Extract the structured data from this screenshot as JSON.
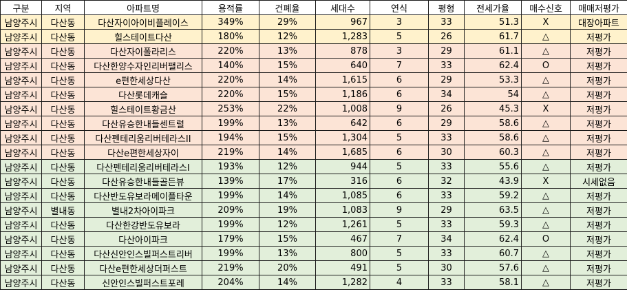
{
  "headers": [
    "구분",
    "지역",
    "아파트명",
    "용적률",
    "건폐율",
    "세대수",
    "연식",
    "평형",
    "전세가율",
    "매수신호",
    "매매저평가"
  ],
  "rows": [
    {
      "group": "yellow",
      "cells": [
        "남양주시",
        "다산동",
        "다산자이아이비플레이스",
        "349%",
        "29%",
        "967",
        "3",
        "33",
        "51.3",
        "X",
        "대장아파트"
      ]
    },
    {
      "group": "yellow",
      "cells": [
        "남양주시",
        "다산동",
        "힐스테이트다산",
        "180%",
        "12%",
        "1,283",
        "5",
        "26",
        "61.7",
        "△",
        "저평가"
      ]
    },
    {
      "group": "peach",
      "cells": [
        "남양주시",
        "다산동",
        "다산자이폴라리스",
        "220%",
        "13%",
        "878",
        "3",
        "29",
        "61.1",
        "△",
        "저평가"
      ]
    },
    {
      "group": "peach",
      "cells": [
        "남양주시",
        "다산동",
        "다산한양수자인리버팰리스",
        "140%",
        "15%",
        "640",
        "7",
        "33",
        "62.4",
        "O",
        "저평가"
      ]
    },
    {
      "group": "peach",
      "cells": [
        "남양주시",
        "다산동",
        "e편한세상다산",
        "220%",
        "14%",
        "1,615",
        "6",
        "29",
        "53.3",
        "△",
        "저평가"
      ]
    },
    {
      "group": "peach",
      "cells": [
        "남양주시",
        "다산동",
        "다산롯데캐슬",
        "220%",
        "15%",
        "1,186",
        "6",
        "34",
        "54",
        "△",
        "저평가"
      ]
    },
    {
      "group": "peach",
      "cells": [
        "남양주시",
        "다산동",
        "힐스테이트황금산",
        "253%",
        "22%",
        "1,008",
        "9",
        "26",
        "45.3",
        "X",
        "저평가"
      ]
    },
    {
      "group": "peach",
      "cells": [
        "남양주시",
        "다산동",
        "다산유승한내들센트럴",
        "199%",
        "13%",
        "642",
        "6",
        "29",
        "58.6",
        "△",
        "저평가"
      ]
    },
    {
      "group": "peach",
      "cells": [
        "남양주시",
        "다산동",
        "다산펜테리움리버테라스II",
        "194%",
        "15%",
        "1,304",
        "5",
        "33",
        "58.6",
        "△",
        "저평가"
      ]
    },
    {
      "group": "peach",
      "cells": [
        "남양주시",
        "다산동",
        "다산e편한세상자이",
        "219%",
        "14%",
        "1,685",
        "6",
        "30",
        "60.3",
        "△",
        "저평가"
      ]
    },
    {
      "group": "green",
      "cells": [
        "남양주시",
        "다산동",
        "다산펜테리움리버테라스I",
        "193%",
        "12%",
        "944",
        "5",
        "33",
        "55.6",
        "△",
        "저평가"
      ]
    },
    {
      "group": "green",
      "cells": [
        "남양주시",
        "다산동",
        "다산유승한내들골든뷰",
        "139%",
        "17%",
        "316",
        "6",
        "32",
        "43.9",
        "X",
        "시세없음"
      ]
    },
    {
      "group": "green",
      "cells": [
        "남양주시",
        "다산동",
        "다산반도유보라메이플타운",
        "199%",
        "14%",
        "1,085",
        "6",
        "33",
        "59.2",
        "△",
        "저평가"
      ]
    },
    {
      "group": "green",
      "cells": [
        "남양주시",
        "별내동",
        "별내2차아이파크",
        "209%",
        "19%",
        "1,083",
        "9",
        "29",
        "63.5",
        "△",
        "저평가"
      ]
    },
    {
      "group": "green",
      "cells": [
        "남양주시",
        "다산동",
        "다산한강반도유보라",
        "199%",
        "12%",
        "1,261",
        "5",
        "33",
        "59.3",
        "△",
        "저평가"
      ]
    },
    {
      "group": "green",
      "cells": [
        "남양주시",
        "다산동",
        "다산아이파크",
        "179%",
        "15%",
        "467",
        "7",
        "34",
        "62.4",
        "O",
        "저평가"
      ]
    },
    {
      "group": "green",
      "cells": [
        "남양주시",
        "다산동",
        "다산신안인스빌퍼스트리버",
        "199%",
        "13%",
        "800",
        "5",
        "33",
        "60.7",
        "△",
        "저평가"
      ]
    },
    {
      "group": "green",
      "cells": [
        "남양주시",
        "다산동",
        "다산e편한세상더퍼스트",
        "219%",
        "20%",
        "491",
        "5",
        "30",
        "57.6",
        "△",
        "저평가"
      ]
    },
    {
      "group": "green",
      "cells": [
        "남양주시",
        "다산동",
        "신안인스빌퍼스트포레",
        "204%",
        "14%",
        "1,282",
        "4",
        "33",
        "58.1",
        "△",
        "저평가"
      ]
    }
  ],
  "colors": {
    "yellow": "#fff2cc",
    "peach": "#fce4d6",
    "green": "#e2efda",
    "border": "#1a1a1a"
  }
}
